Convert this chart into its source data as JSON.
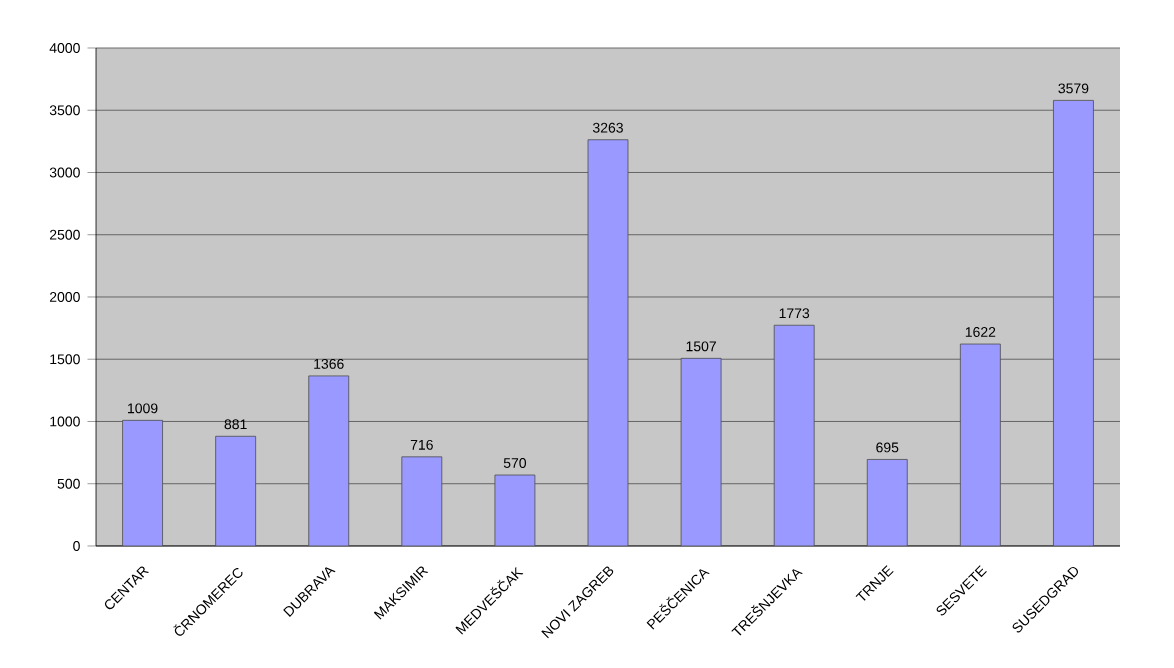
{
  "chart_data": {
    "type": "bar",
    "categories": [
      "CENTAR",
      "ČRNOMEREC",
      "DUBRAVA",
      "MAKSIMIR",
      "MEDVEŠČAK",
      "NOVI ZAGREB",
      "PEŠČENICA",
      "TREŠNJEVKA",
      "TRNJE",
      "SESVETE",
      "SUSEDGRAD"
    ],
    "values": [
      1009,
      881,
      1366,
      716,
      570,
      3263,
      1507,
      1773,
      695,
      1622,
      3579
    ],
    "color": "#9999ff",
    "data_labels": true,
    "grid": "y",
    "ylim": [
      0,
      4000
    ],
    "yticks": [
      0,
      500,
      1000,
      1500,
      2000,
      2500,
      3000,
      3500,
      4000
    ]
  }
}
